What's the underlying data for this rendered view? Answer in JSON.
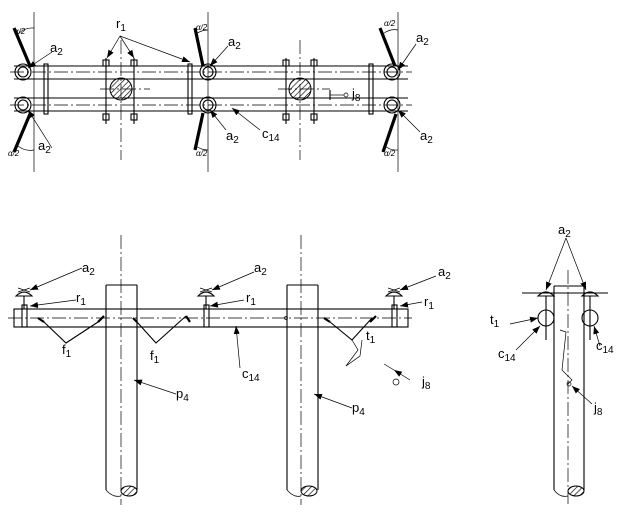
{
  "labels": {
    "r1": {
      "main": "r",
      "sub": "1"
    },
    "a2": {
      "main": "a",
      "sub": "2"
    },
    "alpha_half": "α/2",
    "c14": {
      "main": "c",
      "sub": "14"
    },
    "j8": {
      "main": "j",
      "sub": "8"
    },
    "f1": {
      "main": "f",
      "sub": "1"
    },
    "t1": {
      "main": "t",
      "sub": "1"
    },
    "p4": {
      "main": "p",
      "sub": "4"
    }
  }
}
